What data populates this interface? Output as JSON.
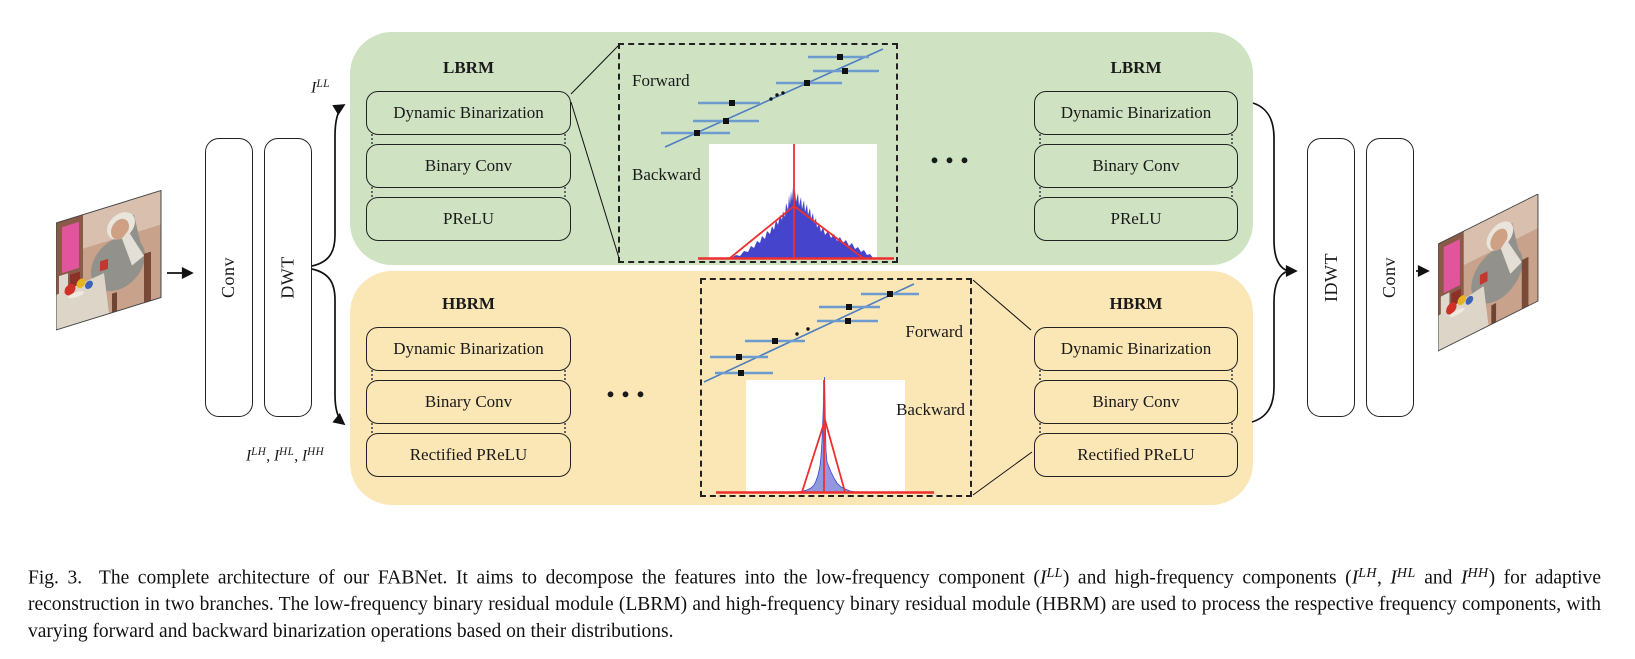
{
  "figure": {
    "caption_segments": [
      {
        "t": "Fig. 3.  The complete architecture of our FABNet. It aims to decompose the features into the low-frequency component ("
      },
      {
        "t": "I",
        "i": true
      },
      {
        "t": "LL",
        "sup": true
      },
      {
        "t": ") and high-frequency components ("
      },
      {
        "t": "I",
        "i": true
      },
      {
        "t": "LH",
        "sup": true
      },
      {
        "t": ", "
      },
      {
        "t": "I",
        "i": true
      },
      {
        "t": "HL",
        "sup": true
      },
      {
        "t": " and "
      },
      {
        "t": "I",
        "i": true
      },
      {
        "t": "HH",
        "sup": true
      },
      {
        "t": ") for adaptive reconstruction in two branches. The low-frequency binary residual module (LBRM) and high-frequency binary residual module (HBRM) are used to process the respective frequency components, with varying forward and backward binarization operations based on their distributions."
      }
    ]
  },
  "pipeline": {
    "conv_in": "Conv",
    "dwt": "DWT",
    "idwt": "IDWT",
    "conv_out": "Conv",
    "ellipsis": "...",
    "low_freq_segments": [
      {
        "t": "I",
        "i": true
      },
      {
        "t": "LL",
        "sup": true
      }
    ],
    "high_freq_segments": [
      {
        "t": "I",
        "i": true
      },
      {
        "t": "LH",
        "sup": true
      },
      {
        "t": ", "
      },
      {
        "t": "I",
        "i": true
      },
      {
        "t": "HL",
        "sup": true
      },
      {
        "t": ", "
      },
      {
        "t": "I",
        "i": true
      },
      {
        "t": "HH",
        "sup": true
      }
    ]
  },
  "blocks": {
    "lbrm_left": {
      "title": "LBRM",
      "boxes": [
        "Dynamic Binarization",
        "Binary Conv",
        "PReLU"
      ]
    },
    "lbrm_right": {
      "title": "LBRM",
      "boxes": [
        "Dynamic Binarization",
        "Binary Conv",
        "PReLU"
      ]
    },
    "hbrm_left": {
      "title": "HBRM",
      "boxes": [
        "Dynamic Binarization",
        "Binary Conv",
        "Rectified PReLU"
      ]
    },
    "hbrm_right": {
      "title": "HBRM",
      "boxes": [
        "Dynamic Binarization",
        "Binary Conv",
        "Rectified PReLU"
      ]
    }
  },
  "insets": {
    "lbrm": {
      "forward": "Forward",
      "backward": "Backward"
    },
    "hbrm": {
      "forward": "Forward",
      "backward": "Backward"
    }
  },
  "colors": {
    "lbrm_panel": "#cfe3c3",
    "hbrm_panel": "#fbe6b6",
    "box_border": "#222222",
    "scatter_line": "#4f7fbf",
    "errorbar": "#6d9bd0",
    "marker": "#111111",
    "hist_low": "#4444cc",
    "hist_high": "#9298de",
    "overlay_red": "#ee2f2f"
  }
}
